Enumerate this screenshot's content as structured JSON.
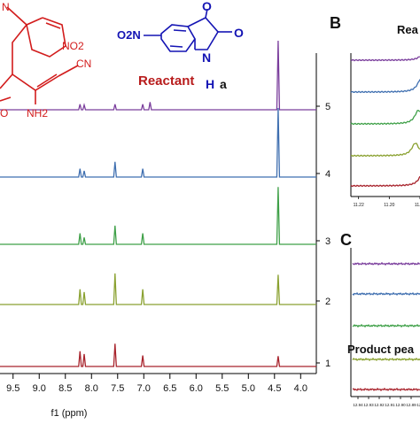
{
  "figure": {
    "panel_b_letter": "B",
    "panel_c_letter": "C",
    "panel_b_caption": "Rea",
    "panel_c_caption": "Product pea",
    "reactant_label": "Reactant",
    "reactant_sub_label": "a",
    "reactant_no2": "O2N",
    "reactant_o1": "O",
    "reactant_o2": "O",
    "reactant_nh_n": "N",
    "reactant_nh_h": "H",
    "product_no2": "NO2",
    "product_cn": "CN",
    "product_nh2": "NH2",
    "product_o": "O",
    "product_n": "N"
  },
  "colors": {
    "purple": "#7a3d9c",
    "blue": "#3f6fb0",
    "green": "#3fa048",
    "olive": "#8aa130",
    "red": "#a8232c",
    "reactant_text": "#1414b4",
    "reactant_label_text": "#b81c1c",
    "product_structure": "#d21c1c"
  },
  "chart_data": [
    {
      "type": "line",
      "panel": "A",
      "xlabel": "f1 (ppm)",
      "x_ticks": [
        "9.5",
        "9.0",
        "8.5",
        "8.0",
        "7.5",
        "7.0",
        "6.5",
        "6.0",
        "5.5",
        "5.0",
        "4.5",
        "4.0"
      ],
      "xlim": [
        9.75,
        3.7
      ],
      "stack_labels": [
        "1",
        "2",
        "3",
        "4",
        "5"
      ],
      "series": [
        {
          "stack": "5",
          "color": "purple",
          "peaks": [
            {
              "x": 8.22,
              "h": 0.08
            },
            {
              "x": 8.14,
              "h": 0.07
            },
            {
              "x": 7.55,
              "h": 0.08
            },
            {
              "x": 7.02,
              "h": 0.08
            },
            {
              "x": 6.88,
              "h": 0.11
            },
            {
              "x": 4.43,
              "h": 1.0
            }
          ]
        },
        {
          "stack": "4",
          "color": "blue",
          "peaks": [
            {
              "x": 8.22,
              "h": 0.12
            },
            {
              "x": 8.14,
              "h": 0.09
            },
            {
              "x": 7.55,
              "h": 0.22
            },
            {
              "x": 7.02,
              "h": 0.12
            },
            {
              "x": 4.43,
              "h": 1.0
            }
          ]
        },
        {
          "stack": "3",
          "color": "green",
          "peaks": [
            {
              "x": 8.22,
              "h": 0.16
            },
            {
              "x": 8.14,
              "h": 0.1
            },
            {
              "x": 7.55,
              "h": 0.27
            },
            {
              "x": 7.02,
              "h": 0.16
            },
            {
              "x": 4.43,
              "h": 0.83
            }
          ]
        },
        {
          "stack": "2",
          "color": "olive",
          "peaks": [
            {
              "x": 8.22,
              "h": 0.22
            },
            {
              "x": 8.14,
              "h": 0.18
            },
            {
              "x": 7.55,
              "h": 0.45
            },
            {
              "x": 7.02,
              "h": 0.22
            },
            {
              "x": 4.43,
              "h": 0.43
            }
          ]
        },
        {
          "stack": "1",
          "color": "red",
          "peaks": [
            {
              "x": 8.22,
              "h": 0.22
            },
            {
              "x": 8.14,
              "h": 0.18
            },
            {
              "x": 7.55,
              "h": 0.33
            },
            {
              "x": 7.02,
              "h": 0.16
            },
            {
              "x": 4.43,
              "h": 0.15
            }
          ]
        }
      ]
    },
    {
      "type": "line",
      "panel": "B",
      "title": "Rea",
      "x_ticks": [
        "11.22",
        "11.20",
        "11.18"
      ],
      "xlim": [
        11.225,
        11.165
      ],
      "series": [
        {
          "color": "purple",
          "peak_x": 11.178,
          "h": 0.3
        },
        {
          "color": "blue",
          "peak_x": 11.179,
          "h": 0.75
        },
        {
          "color": "green",
          "peak_x": 11.181,
          "h": 0.7
        },
        {
          "color": "olive",
          "peak_x": 11.183,
          "h": 0.65
        },
        {
          "color": "red",
          "peak_x": 11.178,
          "h": 0.7
        }
      ]
    },
    {
      "type": "line",
      "panel": "C",
      "title": "Product pea",
      "x_ticks": [
        "12.94",
        "12.93",
        "12.92",
        "12.91",
        "12.90",
        "12.89",
        "12.88"
      ],
      "series": [
        {
          "color": "purple"
        },
        {
          "color": "blue"
        },
        {
          "color": "green"
        },
        {
          "color": "olive"
        },
        {
          "color": "red"
        }
      ]
    }
  ]
}
